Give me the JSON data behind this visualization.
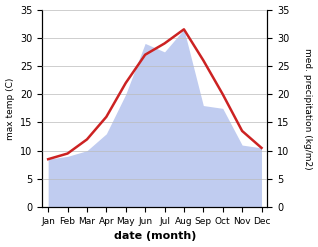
{
  "months": [
    "Jan",
    "Feb",
    "Mar",
    "Apr",
    "May",
    "Jun",
    "Jul",
    "Aug",
    "Sep",
    "Oct",
    "Nov",
    "Dec"
  ],
  "max_temp": [
    8.5,
    9.5,
    12.0,
    16.0,
    22.0,
    27.0,
    29.0,
    31.5,
    26.0,
    20.0,
    13.5,
    10.5
  ],
  "precipitation": [
    8.5,
    9.0,
    10.0,
    13.0,
    20.0,
    29.0,
    27.5,
    31.5,
    18.0,
    17.5,
    11.0,
    10.5
  ],
  "temp_color": "#cc2222",
  "precip_color": "#c0ccf0",
  "background_color": "#ffffff",
  "ylim_left": [
    0,
    35
  ],
  "ylim_right": [
    0,
    35
  ],
  "xlabel": "date (month)",
  "ylabel_left": "max temp (C)",
  "ylabel_right": "med. precipitation (kg/m2)",
  "temp_linewidth": 1.8,
  "grid_color": "#bbbbbb"
}
